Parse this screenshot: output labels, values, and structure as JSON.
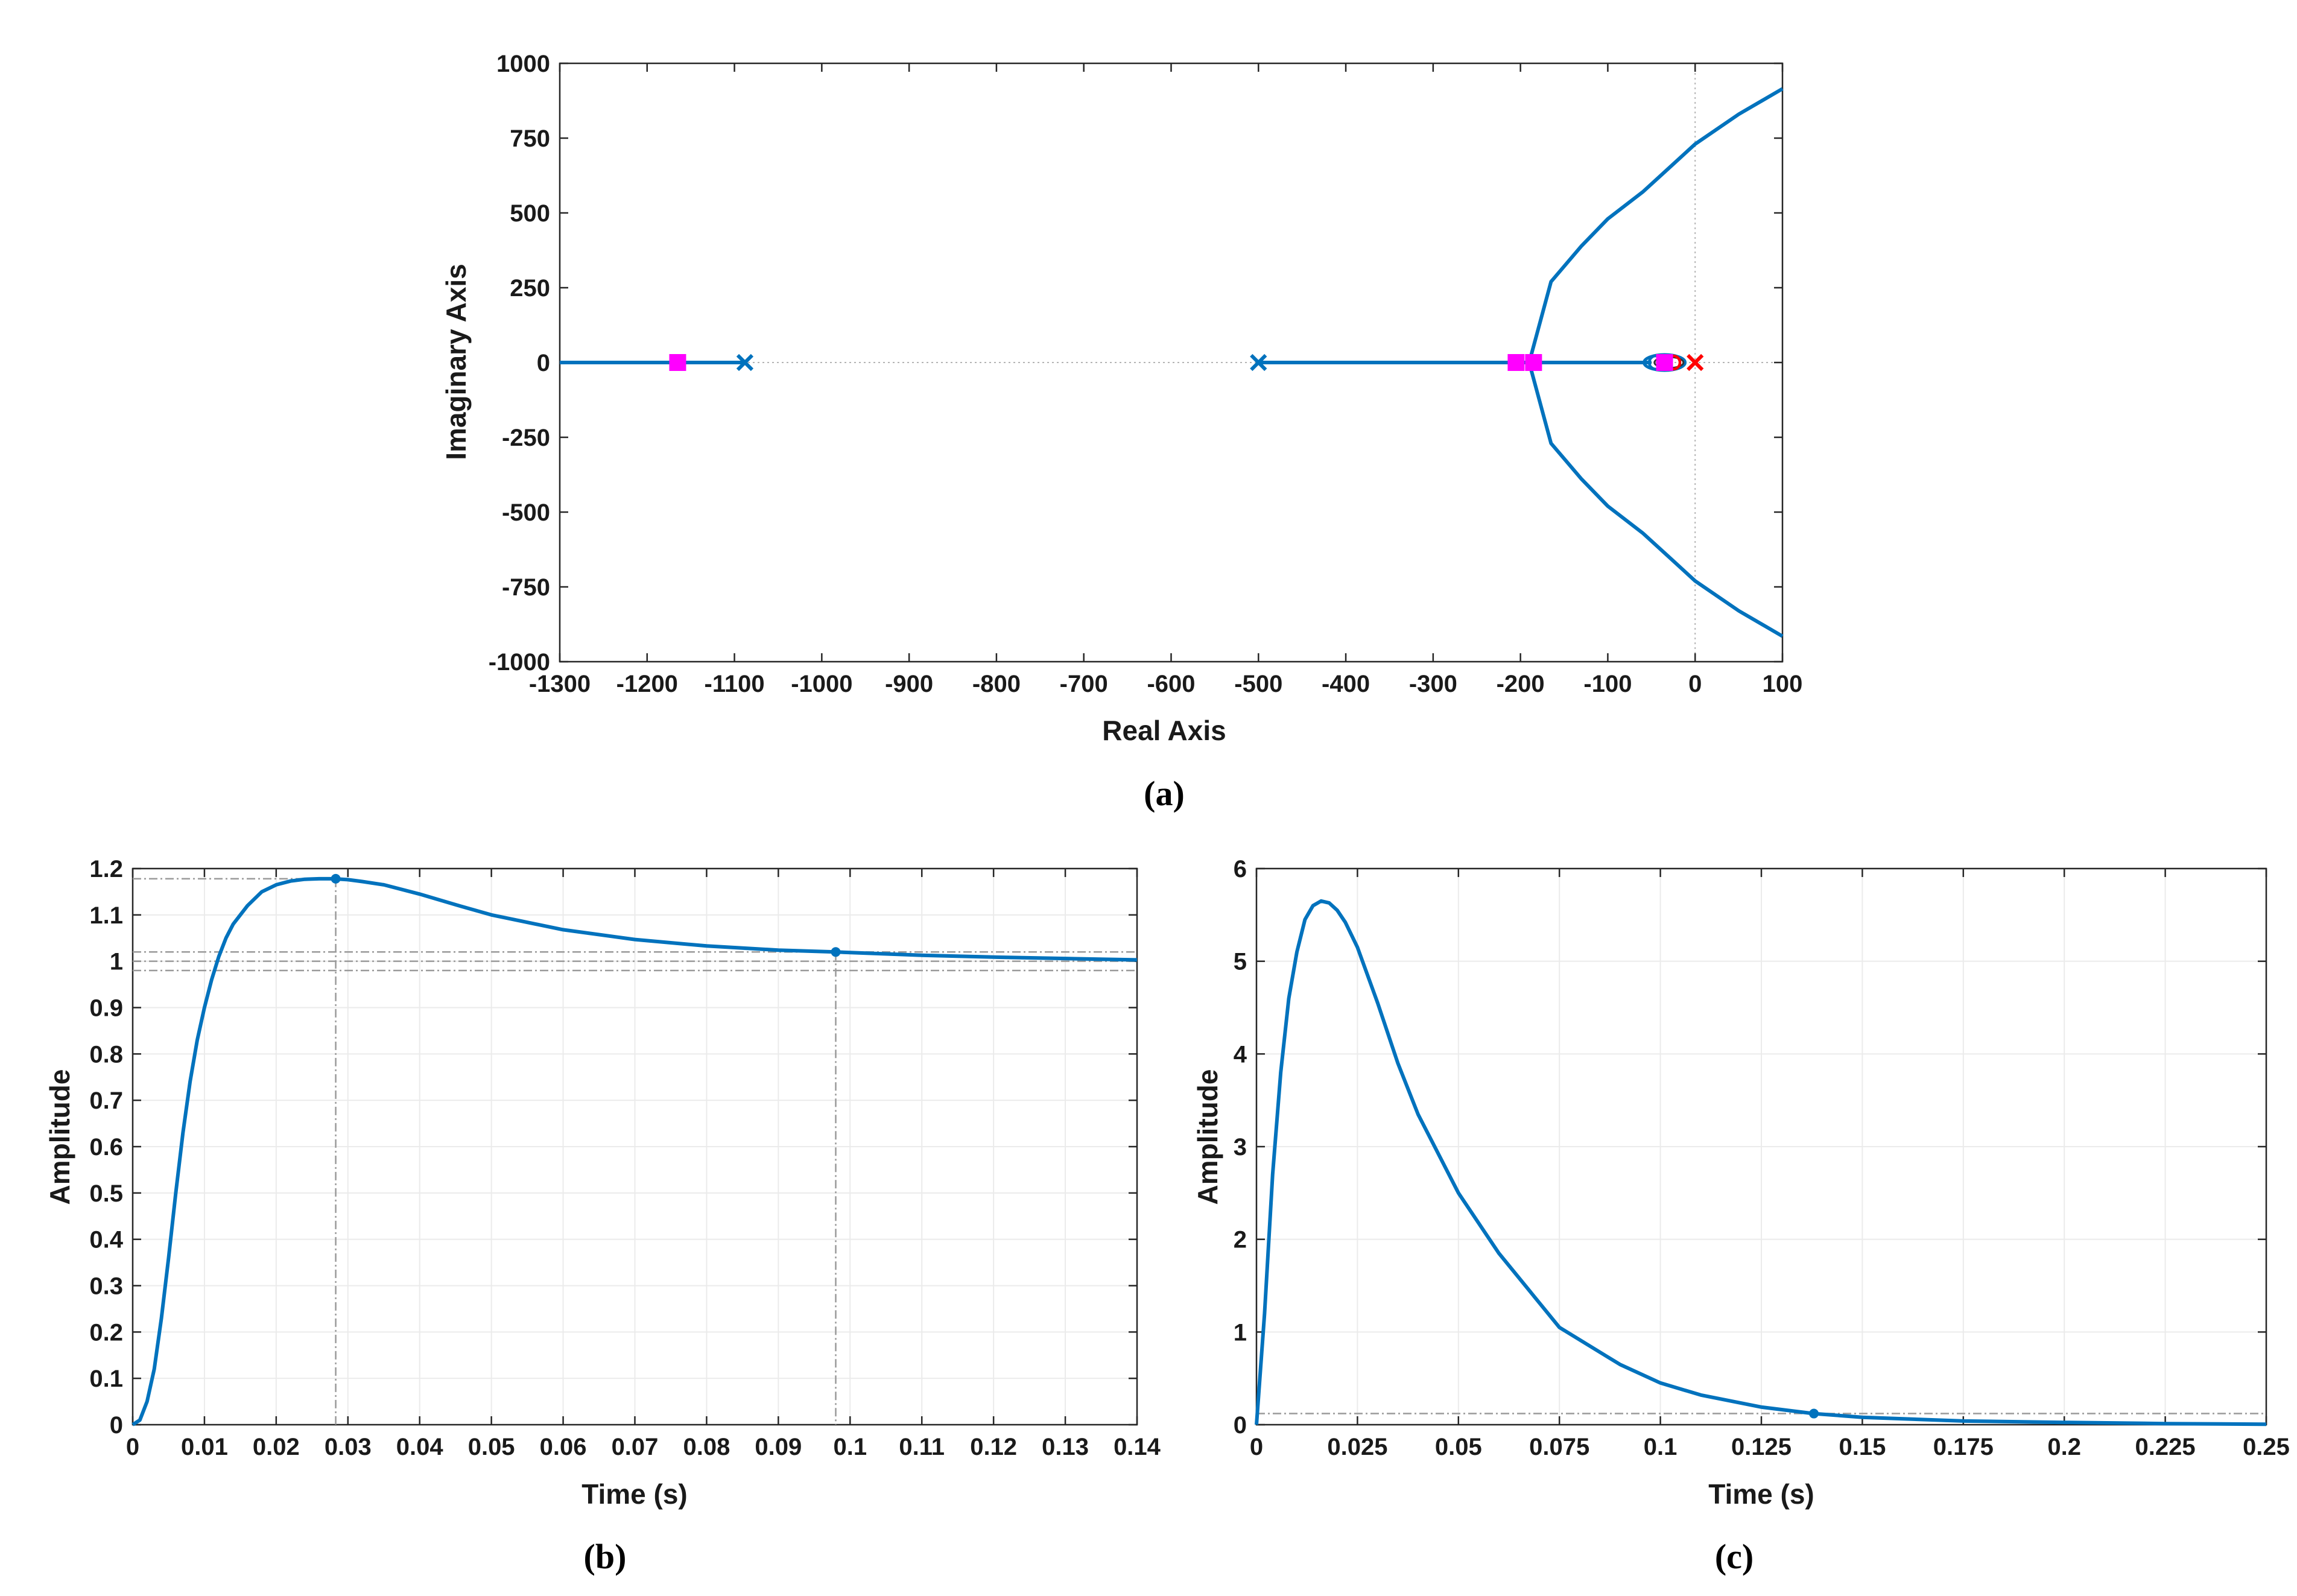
{
  "captions": [
    "(a)",
    "(b)",
    "(c)"
  ],
  "colors": {
    "line": "#0072bd",
    "pole": "#0072bd",
    "open_loop_pole_red": "#ff0000",
    "closed_loop_pole": "#ff00ff",
    "grid": "#ebebeb",
    "ref_line": "#9a9a9a"
  },
  "chart_data": [
    {
      "id": "a",
      "type": "root-locus",
      "title": "",
      "xlabel": "Real Axis",
      "ylabel": "Imaginary Axis",
      "xlim": [
        -1300,
        100
      ],
      "ylim": [
        -1000,
        1000
      ],
      "xticks": [
        -1300,
        -1200,
        -1100,
        -1000,
        -900,
        -800,
        -700,
        -600,
        -500,
        -400,
        -300,
        -200,
        -100,
        0,
        100
      ],
      "yticks": [
        -1000,
        -750,
        -500,
        -250,
        0,
        250,
        500,
        750,
        1000
      ],
      "grid": false,
      "branches": [
        {
          "name": "real-axis-left",
          "x": [
            -1300,
            -1088
          ],
          "y": [
            0,
            0
          ]
        },
        {
          "name": "real-axis-mid",
          "x": [
            -500,
            -190
          ],
          "y": [
            0,
            0
          ]
        },
        {
          "name": "real-axis-right",
          "x": [
            -190,
            -50
          ],
          "y": [
            0,
            0
          ]
        },
        {
          "name": "upper",
          "x": [
            -190,
            -165,
            -130,
            -100,
            -60,
            -30,
            0,
            50,
            100
          ],
          "y": [
            0,
            270,
            390,
            480,
            570,
            650,
            730,
            830,
            915
          ]
        },
        {
          "name": "lower",
          "x": [
            -190,
            -165,
            -130,
            -100,
            -60,
            -30,
            0,
            50,
            100
          ],
          "y": [
            0,
            -270,
            -390,
            -480,
            -570,
            -650,
            -730,
            -830,
            -915
          ]
        }
      ],
      "poles": [
        {
          "x": -1088,
          "y": 0,
          "color": "#0072bd"
        },
        {
          "x": -500,
          "y": 0,
          "color": "#0072bd"
        },
        {
          "x": 0,
          "y": 0,
          "color": "#ff0000"
        }
      ],
      "zeros": [
        {
          "x": -45,
          "y": 0,
          "color": "#0072bd"
        },
        {
          "x": -25,
          "y": 0,
          "color": "#ff0000"
        }
      ],
      "closed_loop_poles": [
        {
          "x": -1165,
          "y": 0
        },
        {
          "x": -205,
          "y": 0
        },
        {
          "x": -185,
          "y": 0
        },
        {
          "x": -35,
          "y": 0
        }
      ]
    },
    {
      "id": "b",
      "type": "line",
      "title": "",
      "xlabel": "Time (s)",
      "ylabel": "Amplitude",
      "xlim": [
        0,
        0.14
      ],
      "ylim": [
        0,
        1.2
      ],
      "xticks": [
        "0",
        "0.01",
        "0.02",
        "0.03",
        "0.04",
        "0.05",
        "0.06",
        "0.07",
        "0.08",
        "0.09",
        "0.1",
        "0.11",
        "0.12",
        "0.13",
        "0.14"
      ],
      "yticks": [
        "0",
        "0.1",
        "0.2",
        "0.3",
        "0.4",
        "0.5",
        "0.6",
        "0.7",
        "0.8",
        "0.9",
        "1",
        "1.1",
        "1.2"
      ],
      "grid": true,
      "series": [
        {
          "name": "step response",
          "x": [
            0,
            0.001,
            0.002,
            0.003,
            0.004,
            0.005,
            0.006,
            0.007,
            0.008,
            0.009,
            0.01,
            0.011,
            0.012,
            0.013,
            0.014,
            0.016,
            0.018,
            0.02,
            0.022,
            0.024,
            0.026,
            0.028,
            0.03,
            0.032,
            0.035,
            0.04,
            0.045,
            0.05,
            0.06,
            0.07,
            0.08,
            0.09,
            0.098,
            0.11,
            0.12,
            0.13,
            0.14
          ],
          "y": [
            0,
            0.01,
            0.05,
            0.12,
            0.23,
            0.36,
            0.5,
            0.63,
            0.74,
            0.83,
            0.9,
            0.96,
            1.01,
            1.05,
            1.08,
            1.12,
            1.15,
            1.165,
            1.173,
            1.177,
            1.178,
            1.178,
            1.176,
            1.172,
            1.165,
            1.145,
            1.122,
            1.1,
            1.068,
            1.047,
            1.033,
            1.024,
            1.02,
            1.013,
            1.009,
            1.006,
            1.003
          ]
        }
      ],
      "markers": [
        {
          "label": "peak",
          "x": 0.0283,
          "y": 1.178
        },
        {
          "label": "settling",
          "x": 0.098,
          "y": 1.02
        }
      ],
      "reference_lines": {
        "horizontal": [
          1.178,
          1.02,
          1.0,
          0.98
        ],
        "vertical": [
          0.0283,
          0.098
        ]
      }
    },
    {
      "id": "c",
      "type": "line",
      "title": "",
      "xlabel": "Time (s)",
      "ylabel": "Amplitude",
      "xlim": [
        0,
        0.25
      ],
      "ylim": [
        0,
        6
      ],
      "xticks": [
        "0",
        "0.025",
        "0.05",
        "0.075",
        "0.1",
        "0.125",
        "0.15",
        "0.175",
        "0.2",
        "0.225",
        "0.25"
      ],
      "yticks": [
        "0",
        "1",
        "2",
        "3",
        "4",
        "5",
        "6"
      ],
      "grid": true,
      "series": [
        {
          "name": "impulse response",
          "x": [
            0,
            0.002,
            0.004,
            0.006,
            0.008,
            0.01,
            0.012,
            0.014,
            0.016,
            0.018,
            0.02,
            0.022,
            0.025,
            0.03,
            0.035,
            0.04,
            0.05,
            0.06,
            0.075,
            0.09,
            0.1,
            0.11,
            0.125,
            0.138,
            0.15,
            0.175,
            0.2,
            0.225,
            0.25
          ],
          "y": [
            0,
            1.2,
            2.7,
            3.8,
            4.6,
            5.1,
            5.45,
            5.6,
            5.65,
            5.63,
            5.55,
            5.42,
            5.15,
            4.55,
            3.9,
            3.35,
            2.5,
            1.85,
            1.05,
            0.65,
            0.45,
            0.32,
            0.19,
            0.12,
            0.08,
            0.04,
            0.025,
            0.012,
            0.005
          ]
        }
      ],
      "markers": [
        {
          "label": "settling",
          "x": 0.138,
          "y": 0.12
        }
      ],
      "reference_lines": {
        "horizontal": [
          0.12
        ],
        "vertical": []
      }
    }
  ]
}
